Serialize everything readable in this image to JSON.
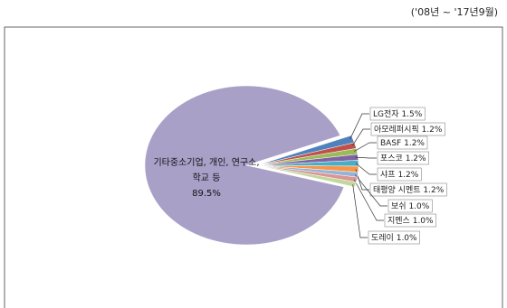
{
  "chart_data": {
    "type": "pie",
    "subtitle": "('08년 ~ '17년9월)",
    "categories": [
      "LG전자",
      "아모레퍼시픽",
      "BASF",
      "포스코",
      "샤프",
      "태평양 시멘트",
      "보쉬",
      "지멘스",
      "도레이",
      "기타중소기업, 개인, 연구소, 학교 등"
    ],
    "values": [
      1.5,
      1.2,
      1.2,
      1.2,
      1.2,
      1.2,
      1.0,
      1.0,
      1.0,
      89.5
    ],
    "value_labels": [
      "1.5%",
      "1.2%",
      "1.2%",
      "1.2%",
      "1.2%",
      "1.2%",
      "1.0%",
      "1.0%",
      "1.0%",
      "89.5%"
    ],
    "colors": [
      "#4f81bd",
      "#c0504d",
      "#9bbb59",
      "#8064a2",
      "#4bacc6",
      "#f79646",
      "#95b3d7",
      "#d99694",
      "#c3d69b",
      "#a9a0c8"
    ]
  }
}
